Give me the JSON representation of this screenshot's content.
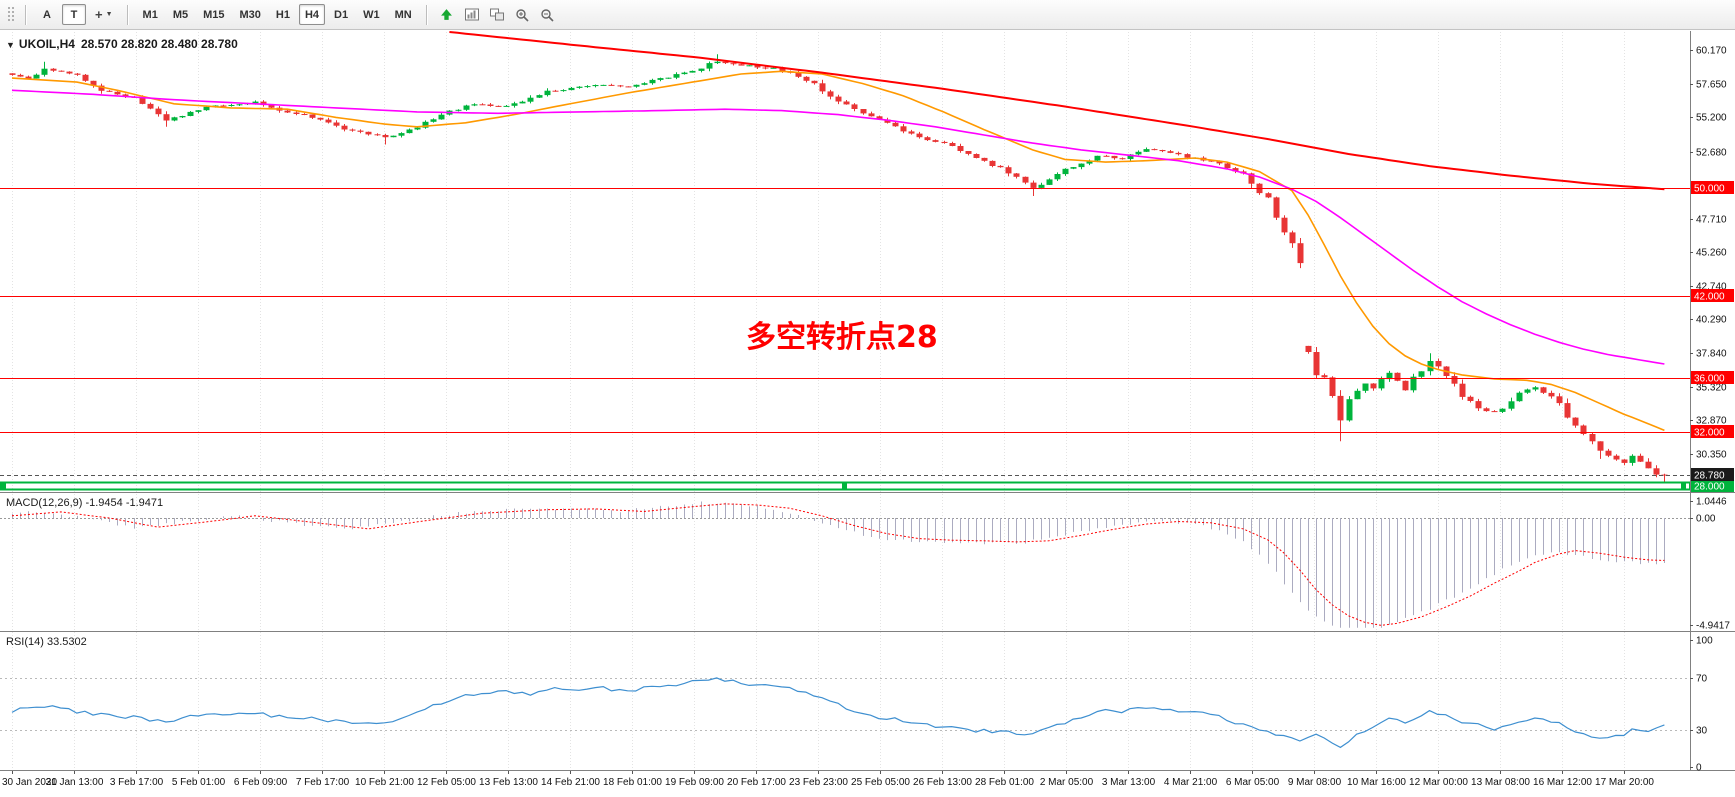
{
  "toolbar": {
    "grip_icon": "toolbar-grip",
    "tools": [
      {
        "label": "A"
      },
      {
        "label": "T",
        "active": true
      },
      {
        "label": "+",
        "caret": "▼"
      }
    ],
    "timeframes": [
      "M1",
      "M5",
      "M15",
      "M30",
      "H1",
      "H4",
      "D1",
      "W1",
      "MN"
    ],
    "selected_timeframe": "H4",
    "right_icons": [
      "arrow-up-icon",
      "chart-window-icon",
      "tile-windows-icon",
      "zoom-in-icon",
      "zoom-out-icon"
    ]
  },
  "chart": {
    "collapse_icon": "▼",
    "symbol_label": "UKOIL,H4",
    "ohlc_text": "28.570 28.820 28.480 28.780",
    "annotation": "多空转折点28",
    "price_axis_labels": [
      "60.170",
      "57.650",
      "55.200",
      "52.680",
      "47.710",
      "45.260",
      "42.740",
      "40.290",
      "37.840",
      "35.320",
      "32.870",
      "30.350"
    ],
    "hlines": [
      {
        "label": "50.000",
        "price": 50.0,
        "style": "red"
      },
      {
        "label": "42.000",
        "price": 42.0,
        "style": "red"
      },
      {
        "label": "36.000",
        "price": 36.0,
        "style": "red"
      },
      {
        "label": "32.000",
        "price": 32.0,
        "style": "red"
      },
      {
        "label": "28.000",
        "price": 28.0,
        "style": "green-band"
      }
    ],
    "current_price": {
      "label": "28.780",
      "price": 28.78
    }
  },
  "macd_panel": {
    "label": "MACD(12,26,9) -1.9454 -1.9471",
    "axis_labels": [
      {
        "label": "1.0446",
        "value": 1.0446
      },
      {
        "label": "0.00",
        "value": 0
      },
      {
        "label": "-4.9417",
        "value": -4.9417
      }
    ]
  },
  "rsi_panel": {
    "label": "RSI(14) 33.5302",
    "levels": [
      70,
      30
    ],
    "axis_labels": [
      {
        "label": "100",
        "value": 100
      },
      {
        "label": "70",
        "value": 70
      },
      {
        "label": "30",
        "value": 30
      },
      {
        "label": "0",
        "value": 0
      }
    ]
  },
  "time_axis": [
    "30 Jan 2020",
    "31 Jan 13:00",
    "3 Feb 17:00",
    "5 Feb 01:00",
    "6 Feb 09:00",
    "7 Feb 17:00",
    "10 Feb 21:00",
    "12 Feb 05:00",
    "13 Feb 13:00",
    "14 Feb 21:00",
    "18 Feb 01:00",
    "19 Feb 09:00",
    "20 Feb 17:00",
    "23 Feb 23:00",
    "25 Feb 05:00",
    "26 Feb 13:00",
    "28 Feb 01:00",
    "2 Mar 05:00",
    "3 Mar 13:00",
    "4 Mar 21:00",
    "6 Mar 05:00",
    "9 Mar 08:00",
    "10 Mar 16:00",
    "12 Mar 00:00",
    "13 Mar 08:00",
    "16 Mar 12:00",
    "17 Mar 20:00"
  ],
  "colors": {
    "up": "#00B43C",
    "down": "#E83535",
    "ma_fast": "#FF9900",
    "ma_mid": "#FF00FF",
    "ma_slow": "#FF0000",
    "hline_red": "#FF0000",
    "hline_green": "#00B43C",
    "current_price_bg": "#1A1A1A",
    "macd_hist": "#ABABC0",
    "macd_signal": "#FF0000",
    "rsi_line": "#3E8FD0",
    "annotation": "#FF0000"
  },
  "chart_data": {
    "type": "candlestick",
    "symbol": "UKOIL",
    "timeframe": "H4",
    "bars": 205,
    "visible_price_range": [
      27.35,
      61.57
    ],
    "current_ohlc": {
      "open": 28.57,
      "high": 28.82,
      "low": 28.48,
      "close": 28.78
    },
    "price_anchors": [
      [
        0,
        58.3
      ],
      [
        2,
        58.1
      ],
      [
        4,
        58.8
      ],
      [
        8,
        58.3
      ],
      [
        11,
        57.2
      ],
      [
        15,
        56.6
      ],
      [
        19,
        55.0
      ],
      [
        23,
        55.8
      ],
      [
        26,
        56.1
      ],
      [
        30,
        56.3
      ],
      [
        34,
        55.6
      ],
      [
        38,
        55.1
      ],
      [
        41,
        54.3
      ],
      [
        46,
        53.7
      ],
      [
        49,
        54.2
      ],
      [
        53,
        55.4
      ],
      [
        57,
        56.2
      ],
      [
        61,
        56.0
      ],
      [
        66,
        57.1
      ],
      [
        69,
        57.3
      ],
      [
        72,
        57.6
      ],
      [
        76,
        57.4
      ],
      [
        81,
        58.2
      ],
      [
        84,
        58.7
      ],
      [
        87,
        59.3
      ],
      [
        91,
        59.0
      ],
      [
        94,
        58.8
      ],
      [
        99,
        57.8
      ],
      [
        102,
        56.3
      ],
      [
        107,
        55.0
      ],
      [
        111,
        54.0
      ],
      [
        114,
        53.4
      ],
      [
        118,
        52.6
      ],
      [
        122,
        51.4
      ],
      [
        126,
        50.0
      ],
      [
        130,
        51.3
      ],
      [
        134,
        52.4
      ],
      [
        137,
        52.1
      ],
      [
        140,
        52.9
      ],
      [
        145,
        52.3
      ],
      [
        149,
        51.8
      ],
      [
        152,
        50.9
      ],
      [
        155,
        49.2
      ],
      [
        157,
        47.0
      ],
      [
        159,
        45.3
      ],
      [
        160,
        36.8
      ],
      [
        162,
        35.8
      ],
      [
        164,
        32.8
      ],
      [
        165,
        34.5
      ],
      [
        167,
        35.6
      ],
      [
        168,
        35.2
      ],
      [
        170,
        36.3
      ],
      [
        172,
        35.0
      ],
      [
        174,
        36.6
      ],
      [
        175,
        37.2
      ],
      [
        176,
        36.6
      ],
      [
        178,
        35.4
      ],
      [
        179,
        34.6
      ],
      [
        181,
        33.8
      ],
      [
        183,
        33.4
      ],
      [
        185,
        34.4
      ],
      [
        187,
        35.1
      ],
      [
        188,
        35.3
      ],
      [
        191,
        34.3
      ],
      [
        192,
        33.2
      ],
      [
        194,
        31.9
      ],
      [
        196,
        30.6
      ],
      [
        197,
        30.2
      ],
      [
        199,
        29.6
      ],
      [
        200,
        30.3
      ],
      [
        202,
        29.4
      ],
      [
        203,
        28.9
      ],
      [
        204,
        28.78
      ]
    ],
    "high_overrides": [
      [
        4,
        59.3
      ],
      [
        87,
        59.85
      ],
      [
        175,
        37.8
      ]
    ],
    "low_overrides": [
      [
        19,
        54.5
      ],
      [
        46,
        53.2
      ],
      [
        126,
        49.4
      ],
      [
        164,
        31.3
      ],
      [
        196,
        30.0
      ],
      [
        204,
        28.25
      ]
    ],
    "overlays": {
      "ma_fast_orange": [
        [
          0,
          58.1
        ],
        [
          8,
          57.8
        ],
        [
          13,
          57.2
        ],
        [
          20,
          56.2
        ],
        [
          27,
          55.9
        ],
        [
          34,
          55.8
        ],
        [
          40,
          55.2
        ],
        [
          46,
          54.7
        ],
        [
          50,
          54.5
        ],
        [
          56,
          54.8
        ],
        [
          62,
          55.4
        ],
        [
          68,
          56.1
        ],
        [
          76,
          57.0
        ],
        [
          84,
          57.8
        ],
        [
          90,
          58.4
        ],
        [
          95,
          58.6
        ],
        [
          100,
          58.4
        ],
        [
          105,
          57.7
        ],
        [
          110,
          56.8
        ],
        [
          115,
          55.6
        ],
        [
          120,
          54.3
        ],
        [
          126,
          52.8
        ],
        [
          130,
          52.1
        ],
        [
          135,
          51.9
        ],
        [
          140,
          52.0
        ],
        [
          146,
          52.2
        ],
        [
          150,
          51.9
        ],
        [
          154,
          51.2
        ],
        [
          158,
          49.8
        ],
        [
          160,
          48.0
        ],
        [
          162,
          45.8
        ],
        [
          164,
          43.5
        ],
        [
          166,
          41.5
        ],
        [
          168,
          39.8
        ],
        [
          170,
          38.5
        ],
        [
          172,
          37.6
        ],
        [
          174,
          37.0
        ],
        [
          176,
          36.6
        ],
        [
          179,
          36.2
        ],
        [
          183,
          35.9
        ],
        [
          187,
          35.8
        ],
        [
          190,
          35.5
        ],
        [
          193,
          34.9
        ],
        [
          196,
          34.1
        ],
        [
          199,
          33.3
        ],
        [
          202,
          32.6
        ],
        [
          204,
          32.1
        ]
      ],
      "ma_mid_magenta": [
        [
          0,
          57.2
        ],
        [
          10,
          56.9
        ],
        [
          20,
          56.5
        ],
        [
          30,
          56.2
        ],
        [
          40,
          55.9
        ],
        [
          50,
          55.6
        ],
        [
          60,
          55.5
        ],
        [
          70,
          55.6
        ],
        [
          80,
          55.7
        ],
        [
          88,
          55.8
        ],
        [
          95,
          55.7
        ],
        [
          102,
          55.4
        ],
        [
          108,
          55.0
        ],
        [
          114,
          54.5
        ],
        [
          120,
          53.9
        ],
        [
          126,
          53.3
        ],
        [
          132,
          52.8
        ],
        [
          138,
          52.4
        ],
        [
          144,
          52.0
        ],
        [
          150,
          51.4
        ],
        [
          154,
          50.8
        ],
        [
          158,
          49.9
        ],
        [
          161,
          49.0
        ],
        [
          164,
          47.8
        ],
        [
          167,
          46.5
        ],
        [
          170,
          45.2
        ],
        [
          173,
          43.9
        ],
        [
          176,
          42.7
        ],
        [
          179,
          41.6
        ],
        [
          182,
          40.7
        ],
        [
          185,
          39.9
        ],
        [
          188,
          39.2
        ],
        [
          191,
          38.6
        ],
        [
          194,
          38.1
        ],
        [
          197,
          37.7
        ],
        [
          200,
          37.4
        ],
        [
          204,
          37.0
        ]
      ],
      "ma_slow_red": [
        [
          54,
          61.5
        ],
        [
          70,
          60.5
        ],
        [
          85,
          59.6
        ],
        [
          100,
          58.5
        ],
        [
          115,
          57.3
        ],
        [
          130,
          56.0
        ],
        [
          145,
          54.6
        ],
        [
          155,
          53.6
        ],
        [
          165,
          52.5
        ],
        [
          175,
          51.6
        ],
        [
          185,
          50.9
        ],
        [
          195,
          50.3
        ],
        [
          204,
          49.9
        ]
      ]
    },
    "macd": {
      "params": "12,26,9",
      "value": -1.9454,
      "signal": -1.9471,
      "range": [
        -4.9417,
        1.0446
      ],
      "anchors": [
        [
          0,
          0.1
        ],
        [
          6,
          0.28
        ],
        [
          12,
          0.0
        ],
        [
          18,
          -0.42
        ],
        [
          24,
          -0.18
        ],
        [
          30,
          0.1
        ],
        [
          36,
          -0.15
        ],
        [
          44,
          -0.5
        ],
        [
          50,
          -0.18
        ],
        [
          58,
          0.22
        ],
        [
          66,
          0.38
        ],
        [
          72,
          0.42
        ],
        [
          78,
          0.3
        ],
        [
          84,
          0.52
        ],
        [
          88,
          0.65
        ],
        [
          92,
          0.6
        ],
        [
          96,
          0.45
        ],
        [
          100,
          0.1
        ],
        [
          104,
          -0.35
        ],
        [
          108,
          -0.72
        ],
        [
          112,
          -0.95
        ],
        [
          116,
          -1.02
        ],
        [
          120,
          -1.05
        ],
        [
          124,
          -1.1
        ],
        [
          128,
          -1.05
        ],
        [
          132,
          -0.8
        ],
        [
          136,
          -0.52
        ],
        [
          140,
          -0.28
        ],
        [
          144,
          -0.16
        ],
        [
          148,
          -0.22
        ],
        [
          152,
          -0.5
        ],
        [
          155,
          -1.0
        ],
        [
          157,
          -1.6
        ],
        [
          159,
          -2.4
        ],
        [
          161,
          -3.3
        ],
        [
          163,
          -4.0
        ],
        [
          165,
          -4.5
        ],
        [
          167,
          -4.8
        ],
        [
          169,
          -4.94
        ],
        [
          171,
          -4.85
        ],
        [
          174,
          -4.55
        ],
        [
          177,
          -4.1
        ],
        [
          180,
          -3.6
        ],
        [
          183,
          -3.0
        ],
        [
          186,
          -2.45
        ],
        [
          188,
          -2.05
        ],
        [
          191,
          -1.65
        ],
        [
          193,
          -1.5
        ],
        [
          196,
          -1.62
        ],
        [
          199,
          -1.8
        ],
        [
          202,
          -1.93
        ],
        [
          204,
          -1.95
        ]
      ]
    },
    "rsi": {
      "period": 14,
      "value": 33.5302,
      "range": [
        0,
        100
      ],
      "anchors": [
        [
          0,
          45
        ],
        [
          4,
          48
        ],
        [
          8,
          44
        ],
        [
          12,
          41
        ],
        [
          16,
          39
        ],
        [
          19,
          36
        ],
        [
          23,
          41
        ],
        [
          26,
          43
        ],
        [
          30,
          42
        ],
        [
          34,
          40
        ],
        [
          38,
          38
        ],
        [
          41,
          36
        ],
        [
          46,
          35
        ],
        [
          49,
          42
        ],
        [
          53,
          50
        ],
        [
          57,
          58
        ],
        [
          61,
          60
        ],
        [
          64,
          57
        ],
        [
          66,
          62
        ],
        [
          69,
          60
        ],
        [
          72,
          63
        ],
        [
          76,
          60
        ],
        [
          81,
          65
        ],
        [
          84,
          67
        ],
        [
          87,
          70
        ],
        [
          89,
          68
        ],
        [
          91,
          66
        ],
        [
          94,
          64
        ],
        [
          97,
          60
        ],
        [
          100,
          54
        ],
        [
          103,
          47
        ],
        [
          107,
          40
        ],
        [
          111,
          36
        ],
        [
          114,
          33
        ],
        [
          118,
          30
        ],
        [
          122,
          28
        ],
        [
          126,
          26
        ],
        [
          129,
          33
        ],
        [
          132,
          40
        ],
        [
          134,
          45
        ],
        [
          137,
          44
        ],
        [
          140,
          48
        ],
        [
          143,
          46
        ],
        [
          146,
          43
        ],
        [
          149,
          40
        ],
        [
          152,
          34
        ],
        [
          155,
          29
        ],
        [
          157,
          25
        ],
        [
          159,
          22
        ],
        [
          161,
          26
        ],
        [
          163,
          20
        ],
        [
          164,
          17
        ],
        [
          166,
          25
        ],
        [
          168,
          32
        ],
        [
          170,
          38
        ],
        [
          172,
          36
        ],
        [
          174,
          42
        ],
        [
          175,
          45
        ],
        [
          177,
          41
        ],
        [
          179,
          36
        ],
        [
          181,
          33
        ],
        [
          183,
          30
        ],
        [
          185,
          34
        ],
        [
          187,
          38
        ],
        [
          188,
          39
        ],
        [
          191,
          35
        ],
        [
          192,
          31
        ],
        [
          194,
          27
        ],
        [
          196,
          23
        ],
        [
          198,
          25
        ],
        [
          200,
          29
        ],
        [
          202,
          27
        ],
        [
          203,
          30
        ],
        [
          204,
          33.5
        ]
      ]
    }
  }
}
